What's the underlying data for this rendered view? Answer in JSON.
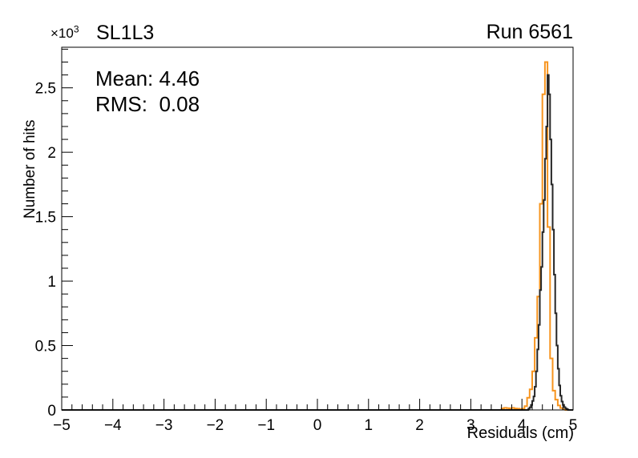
{
  "page": {
    "background": "#ffffff"
  },
  "header": {
    "left_title": "SL1L3",
    "right_title": "Run 6561",
    "y_multiplier_base": "×10",
    "y_multiplier_exp": "3"
  },
  "stats": {
    "mean_label": "Mean: 4.46",
    "rms_label": "RMS:  0.08"
  },
  "chart_data": {
    "type": "line",
    "style": "step-histogram-outline",
    "title": "SL1L3",
    "annotation_right": "Run 6561",
    "annotations": [
      "Mean: 4.46",
      "RMS:  0.08"
    ],
    "stats": {
      "mean": 4.46,
      "rms": 0.08
    },
    "xlabel": "Residuals (cm)",
    "ylabel": "Number of hits",
    "y_axis_multiplier": "×10³",
    "xlim": [
      -5,
      5
    ],
    "ylim": [
      0,
      2.815
    ],
    "grid": false,
    "legend": null,
    "x_major_ticks": [
      -5,
      -4,
      -3,
      -2,
      -1,
      0,
      1,
      2,
      3,
      4,
      5
    ],
    "x_tick_labels": [
      "−5",
      "−4",
      "−3",
      "−2",
      "−1",
      "0",
      "1",
      "2",
      "3",
      "4",
      "5"
    ],
    "x_minor_step": 0.2,
    "y_major_ticks": [
      0,
      0.5,
      1,
      1.5,
      2,
      2.5
    ],
    "y_tick_labels": [
      "0",
      "0.5",
      "1",
      "1.5",
      "2",
      "2.5"
    ],
    "y_minor_step": 0.1,
    "units_note": "heights in units of 10^3 hits",
    "series": [
      {
        "name": "run-histogram-orange",
        "color": "#f7941e",
        "line_width": 2,
        "bin_width": 0.05,
        "first_bin_x": 3.6,
        "heights_k": [
          0.012,
          0.016,
          0.014,
          0.012,
          0.016,
          0.012,
          0.01,
          0.006,
          0.01,
          0.03,
          0.095,
          0.16,
          0.3,
          0.56,
          0.88,
          1.6,
          2.45,
          2.7,
          1.42,
          0.4,
          0.15,
          0.08,
          0.035,
          0.015,
          0.005
        ]
      },
      {
        "name": "reference-histogram-black",
        "color": "#262626",
        "line_width": 2,
        "bin_width": 0.025,
        "first_bin_x": 4.125,
        "heights_k": [
          0.01,
          0.02,
          0.04,
          0.07,
          0.105,
          0.18,
          0.3,
          0.47,
          0.66,
          0.93,
          1.11,
          1.38,
          1.63,
          1.95,
          2.2,
          2.6,
          2.45,
          2.1,
          1.75,
          1.4,
          1.05,
          0.75,
          0.5,
          0.32,
          0.19,
          0.11,
          0.065,
          0.04,
          0.022,
          0.012,
          0.006
        ]
      }
    ]
  }
}
